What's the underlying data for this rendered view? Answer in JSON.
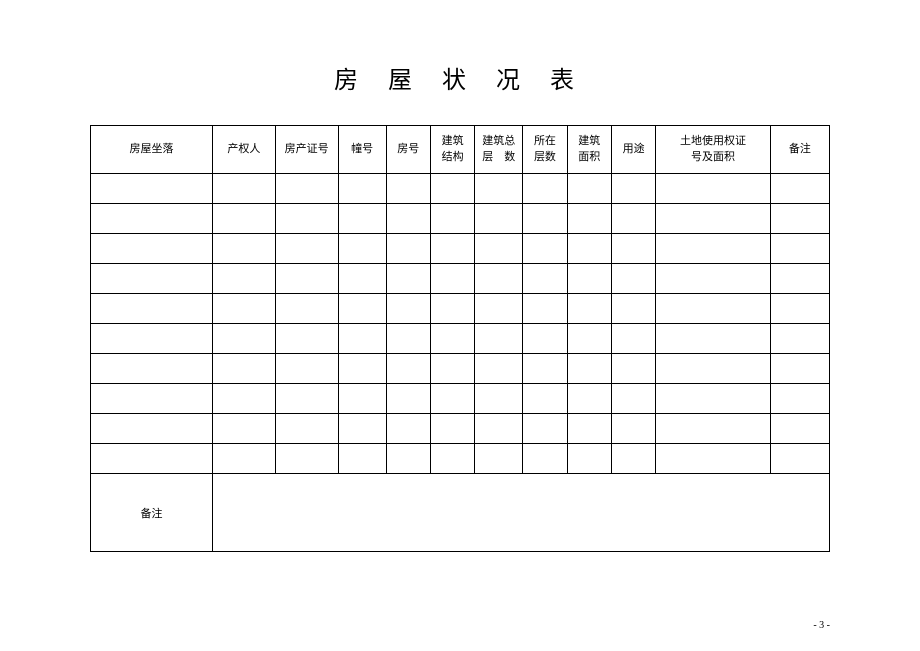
{
  "title": "房 屋 状 况 表",
  "columns": [
    {
      "label": "房屋坐落",
      "width": "16.5%"
    },
    {
      "label": "产权人",
      "width": "8.5%"
    },
    {
      "label": "房产证号",
      "width": "8.5%"
    },
    {
      "label": "幢号",
      "width": "6.5%"
    },
    {
      "label": "房号",
      "width": "6%"
    },
    {
      "label": "建筑\n结构",
      "width": "6%"
    },
    {
      "label": "建筑总\n层　数",
      "width": "6.5%"
    },
    {
      "label": "所在\n层数",
      "width": "6%"
    },
    {
      "label": "建筑\n面积",
      "width": "6%"
    },
    {
      "label": "用途",
      "width": "6%"
    },
    {
      "label": "土地使用权证\n号及面积",
      "width": "15.5%"
    },
    {
      "label": "备注",
      "width": "8%"
    }
  ],
  "dataRowCount": 10,
  "footerLabel": "备注",
  "pageNumber": "- 3 -"
}
